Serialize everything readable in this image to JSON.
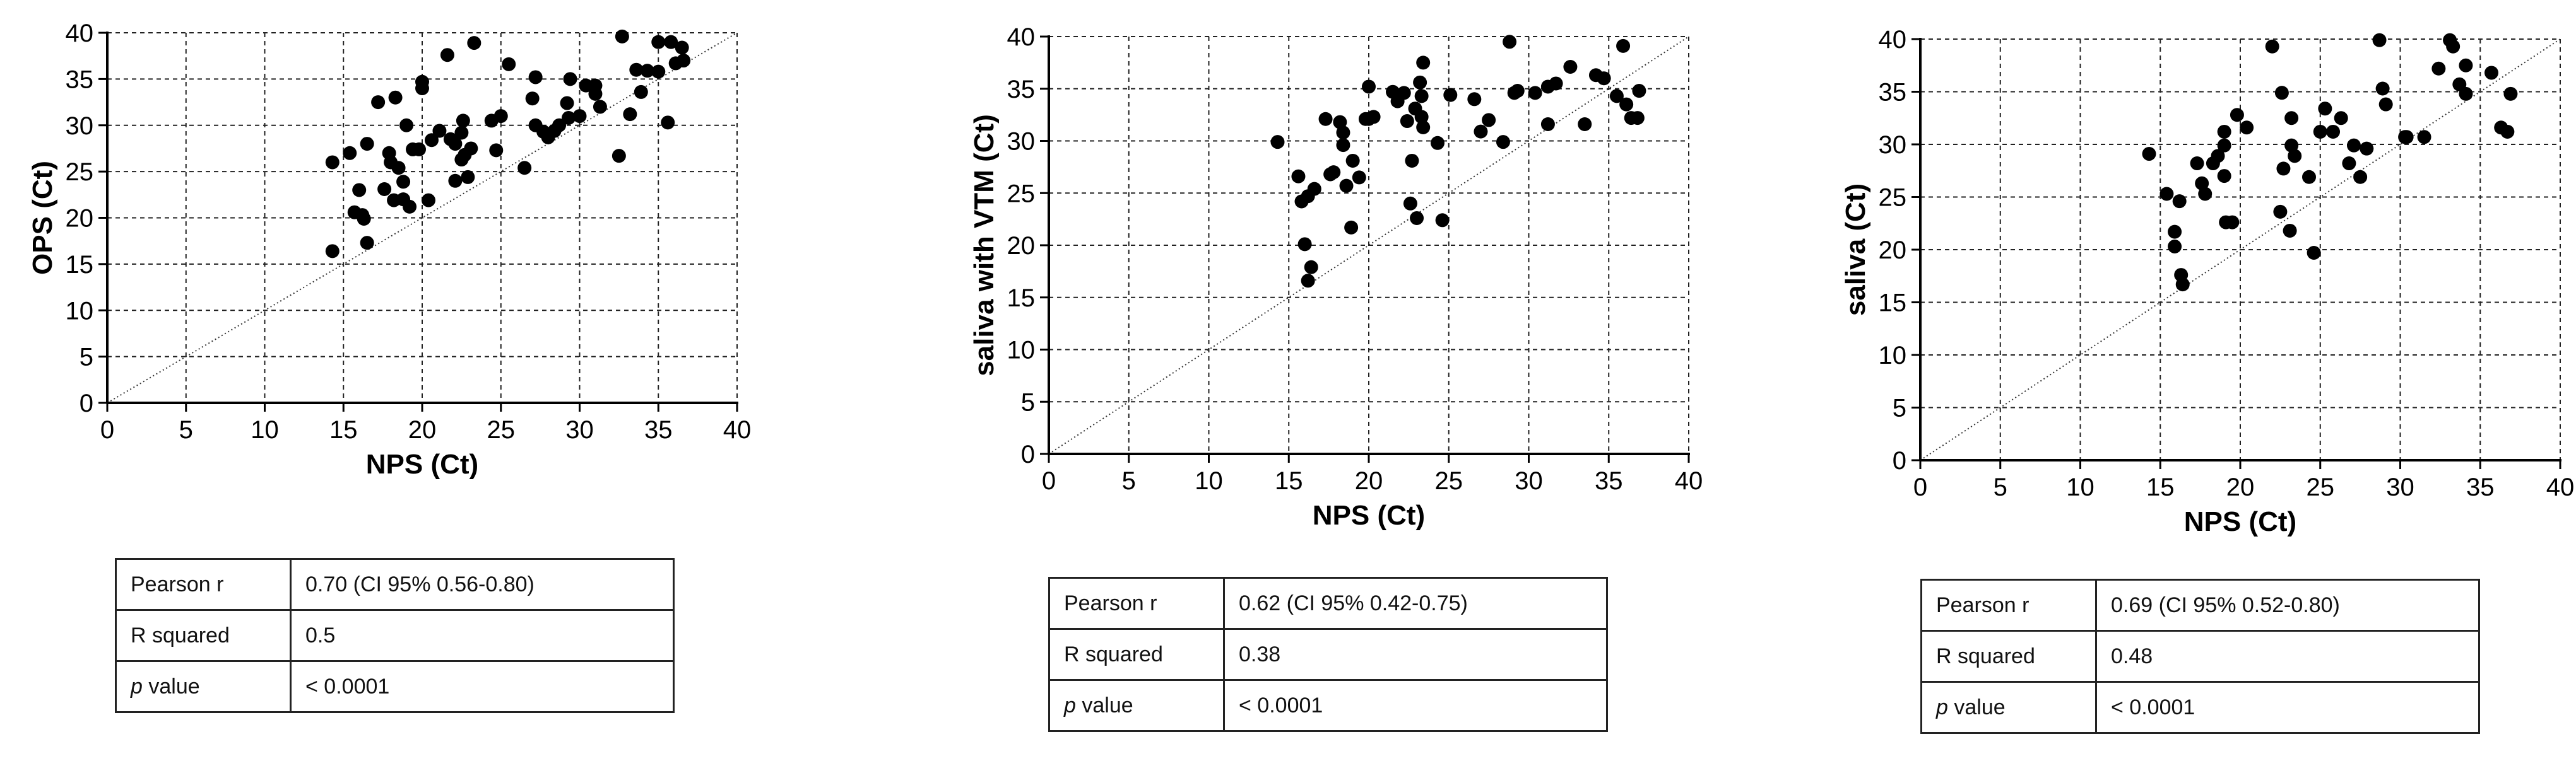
{
  "chart_data": [
    {
      "type": "scatter",
      "xlabel": "NPS (Ct)",
      "ylabel": "OPS (Ct)",
      "xlim": [
        0,
        40
      ],
      "ylim": [
        0,
        40
      ],
      "xticks": [
        "0",
        "5",
        "10",
        "15",
        "20",
        "25",
        "30",
        "35",
        "40"
      ],
      "yticks": [
        "0",
        "5",
        "10",
        "15",
        "20",
        "25",
        "30",
        "35",
        "40"
      ],
      "grid": true,
      "identity_line": {
        "style": "dotted",
        "from": [
          0,
          0
        ],
        "to": [
          40,
          40
        ]
      },
      "points": [
        [
          14.3,
          16.4
        ],
        [
          14.3,
          26
        ],
        [
          15.4,
          27
        ],
        [
          15.7,
          20.6
        ],
        [
          16,
          23
        ],
        [
          16.2,
          20.3
        ],
        [
          16.3,
          19.9
        ],
        [
          16.5,
          17.3
        ],
        [
          16.5,
          28
        ],
        [
          17.2,
          32.5
        ],
        [
          17.6,
          23.1
        ],
        [
          17.9,
          27
        ],
        [
          18,
          26
        ],
        [
          18.2,
          21.9
        ],
        [
          18.3,
          33
        ],
        [
          18.5,
          25.4
        ],
        [
          18.8,
          22
        ],
        [
          18.8,
          23.9
        ],
        [
          19,
          30
        ],
        [
          19.2,
          21.2
        ],
        [
          19.4,
          27.4
        ],
        [
          19.8,
          27.4
        ],
        [
          20,
          34
        ],
        [
          20,
          34.7
        ],
        [
          20.4,
          21.9
        ],
        [
          20.6,
          28.4
        ],
        [
          21.1,
          29.4
        ],
        [
          21.6,
          37.6
        ],
        [
          21.8,
          28.5
        ],
        [
          22.1,
          24
        ],
        [
          22.1,
          28
        ],
        [
          22.5,
          26.3
        ],
        [
          22.5,
          29.2
        ],
        [
          22.6,
          30.5
        ],
        [
          22.7,
          26.8
        ],
        [
          22.9,
          24.4
        ],
        [
          23.1,
          27.5
        ],
        [
          23.3,
          38.9
        ],
        [
          24.4,
          30.5
        ],
        [
          24.7,
          27.3
        ],
        [
          25,
          31
        ],
        [
          25.5,
          36.6
        ],
        [
          26.5,
          25.4
        ],
        [
          27,
          32.9
        ],
        [
          27.2,
          35.2
        ],
        [
          27.2,
          30
        ],
        [
          27.7,
          29.3
        ],
        [
          28,
          28.7
        ],
        [
          28.4,
          29.4
        ],
        [
          28.7,
          30
        ],
        [
          29.2,
          32.4
        ],
        [
          29.3,
          30.8
        ],
        [
          29.4,
          35
        ],
        [
          30,
          31
        ],
        [
          30.4,
          34.3
        ],
        [
          31,
          34.3
        ],
        [
          31,
          33.4
        ],
        [
          31.3,
          32
        ],
        [
          32.5,
          26.7
        ],
        [
          32.7,
          39.6
        ],
        [
          33.2,
          31.2
        ],
        [
          33.6,
          36
        ],
        [
          33.9,
          33.6
        ],
        [
          34.3,
          35.9
        ],
        [
          35,
          39
        ],
        [
          35,
          35.8
        ],
        [
          35.6,
          30.3
        ],
        [
          35.8,
          39
        ],
        [
          36.1,
          36.7
        ],
        [
          36.5,
          38.4
        ],
        [
          36.6,
          37
        ]
      ],
      "stats": [
        {
          "label": "Pearson r",
          "value": "0.70  (CI 95% 0.56-0.80)"
        },
        {
          "label": "R squared",
          "value": "0.5"
        },
        {
          "label": "p",
          "label_suffix": " value",
          "value": "< 0.0001"
        }
      ]
    },
    {
      "type": "scatter",
      "xlabel": "NPS (Ct)",
      "ylabel": "saliva with VTM (Ct)",
      "xlim": [
        0,
        40
      ],
      "ylim": [
        0,
        40
      ],
      "xticks": [
        "0",
        "5",
        "10",
        "15",
        "20",
        "25",
        "30",
        "35",
        "40"
      ],
      "yticks": [
        "0",
        "5",
        "10",
        "15",
        "20",
        "25",
        "30",
        "35",
        "40"
      ],
      "grid": true,
      "identity_line": {
        "style": "dotted",
        "from": [
          0,
          0
        ],
        "to": [
          40,
          40
        ]
      },
      "points": [
        [
          14.3,
          29.9
        ],
        [
          15.6,
          26.6
        ],
        [
          15.8,
          24.2
        ],
        [
          16,
          20.1
        ],
        [
          16.2,
          24.7
        ],
        [
          16.2,
          16.6
        ],
        [
          16.4,
          17.9
        ],
        [
          16.6,
          25.4
        ],
        [
          17.3,
          32.1
        ],
        [
          17.6,
          26.8
        ],
        [
          17.8,
          27
        ],
        [
          18.2,
          31.8
        ],
        [
          18.4,
          29.6
        ],
        [
          18.4,
          30.8
        ],
        [
          18.6,
          25.7
        ],
        [
          18.9,
          21.7
        ],
        [
          19,
          28.1
        ],
        [
          19.4,
          26.5
        ],
        [
          19.8,
          32.1
        ],
        [
          20,
          32.1
        ],
        [
          20,
          35.2
        ],
        [
          20.3,
          32.3
        ],
        [
          21.5,
          34.7
        ],
        [
          21.8,
          33.8
        ],
        [
          22.2,
          34.6
        ],
        [
          22.4,
          31.9
        ],
        [
          22.6,
          24
        ],
        [
          22.7,
          28.1
        ],
        [
          22.9,
          33.1
        ],
        [
          23,
          22.6
        ],
        [
          23.2,
          35.6
        ],
        [
          23.3,
          32.3
        ],
        [
          23.3,
          34.3
        ],
        [
          23.4,
          37.5
        ],
        [
          23.4,
          31.3
        ],
        [
          24.3,
          29.8
        ],
        [
          24.6,
          22.4
        ],
        [
          25.1,
          34.4
        ],
        [
          26.6,
          34
        ],
        [
          27,
          30.9
        ],
        [
          27.5,
          32
        ],
        [
          28.4,
          29.9
        ],
        [
          28.8,
          39.5
        ],
        [
          29.1,
          34.6
        ],
        [
          29.3,
          34.8
        ],
        [
          30.4,
          34.6
        ],
        [
          31.2,
          35.2
        ],
        [
          31.2,
          31.6
        ],
        [
          31.7,
          35.5
        ],
        [
          32.6,
          37.1
        ],
        [
          33.5,
          31.6
        ],
        [
          34.2,
          36.3
        ],
        [
          34.7,
          36
        ],
        [
          35.5,
          34.3
        ],
        [
          35.9,
          39.1
        ],
        [
          36.1,
          33.5
        ],
        [
          36.4,
          32.2
        ],
        [
          36.8,
          32.2
        ],
        [
          36.9,
          34.8
        ]
      ],
      "stats": [
        {
          "label": "Pearson r",
          "value": "0.62 (CI 95% 0.42-0.75)"
        },
        {
          "label": "R squared",
          "value": "0.38"
        },
        {
          "label": "p",
          "label_suffix": " value",
          "value": "< 0.0001"
        }
      ]
    },
    {
      "type": "scatter",
      "xlabel": "NPS (Ct)",
      "ylabel": "saliva (Ct)",
      "xlim": [
        0,
        40
      ],
      "ylim": [
        0,
        40
      ],
      "xticks": [
        "0",
        "5",
        "10",
        "15",
        "20",
        "25",
        "30",
        "35",
        "40"
      ],
      "yticks": [
        "0",
        "5",
        "10",
        "15",
        "20",
        "25",
        "30",
        "35",
        "40"
      ],
      "grid": true,
      "identity_line": {
        "style": "dotted",
        "from": [
          0,
          0
        ],
        "to": [
          40,
          40
        ]
      },
      "points": [
        [
          14.3,
          29.1
        ],
        [
          15.4,
          25.3
        ],
        [
          15.9,
          21.7
        ],
        [
          15.9,
          20.3
        ],
        [
          16.2,
          24.6
        ],
        [
          16.3,
          17.6
        ],
        [
          16.4,
          16.7
        ],
        [
          17.3,
          28.2
        ],
        [
          17.6,
          26.3
        ],
        [
          17.8,
          25.3
        ],
        [
          18.3,
          28.2
        ],
        [
          18.6,
          28.9
        ],
        [
          19,
          29.9
        ],
        [
          19,
          31.2
        ],
        [
          19,
          27
        ],
        [
          19.1,
          22.6
        ],
        [
          19.5,
          22.6
        ],
        [
          19.8,
          32.8
        ],
        [
          20.4,
          31.6
        ],
        [
          22,
          39.3
        ],
        [
          22.5,
          23.6
        ],
        [
          22.6,
          34.9
        ],
        [
          22.7,
          27.7
        ],
        [
          23.1,
          21.8
        ],
        [
          23.2,
          29.9
        ],
        [
          23.2,
          32.5
        ],
        [
          23.4,
          28.9
        ],
        [
          24.3,
          26.9
        ],
        [
          24.6,
          19.7
        ],
        [
          25,
          31.2
        ],
        [
          25.3,
          33.4
        ],
        [
          25.8,
          31.2
        ],
        [
          26.3,
          32.5
        ],
        [
          26.8,
          28.2
        ],
        [
          27.1,
          29.9
        ],
        [
          27.5,
          26.9
        ],
        [
          27.9,
          29.6
        ],
        [
          28.7,
          39.9
        ],
        [
          28.9,
          35.3
        ],
        [
          29.1,
          33.8
        ],
        [
          30.3,
          30.7
        ],
        [
          30.4,
          30.7
        ],
        [
          31.5,
          30.7
        ],
        [
          32.4,
          37.2
        ],
        [
          33.1,
          39.9
        ],
        [
          33.3,
          39.3
        ],
        [
          33.7,
          35.7
        ],
        [
          34.1,
          37.5
        ],
        [
          34.1,
          34.8
        ],
        [
          35.7,
          36.8
        ],
        [
          36.3,
          31.6
        ],
        [
          36.7,
          31.2
        ],
        [
          36.9,
          34.8
        ]
      ],
      "stats": [
        {
          "label": "Pearson r",
          "value": "0.69 (CI 95% 0.52-0.80)"
        },
        {
          "label": "R squared",
          "value": "0.48"
        },
        {
          "label": "p",
          "label_suffix": " value",
          "value": "< 0.0001"
        }
      ]
    }
  ]
}
